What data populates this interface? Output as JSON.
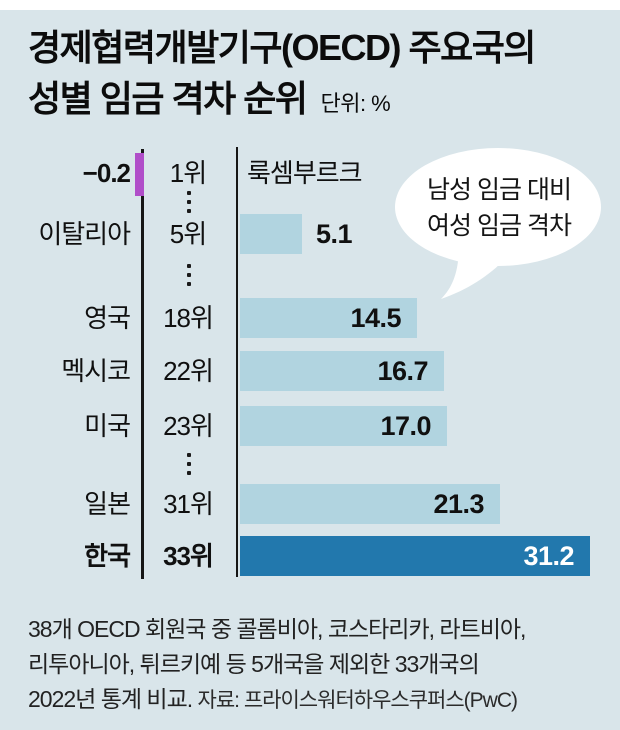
{
  "title": {
    "line1": "경제협력개발기구(OECD) 주요국의",
    "line2": "성별 임금 격차 순위",
    "unit": "단위: %"
  },
  "callout": {
    "line1": "남성 임금 대비",
    "line2": "여성 임금 격차"
  },
  "chart_data": {
    "type": "bar",
    "orientation": "horizontal",
    "title": "경제협력개발기구(OECD) 주요국의 성별 임금 격차 순위",
    "unit": "%",
    "value_axis_range": [
      0,
      31.2
    ],
    "grid": false,
    "categories": [
      "룩셈부르크",
      "이탈리아",
      "영국",
      "멕시코",
      "미국",
      "일본",
      "한국"
    ],
    "values": [
      -0.2,
      5.1,
      14.5,
      16.7,
      17.0,
      21.3,
      31.2
    ],
    "rows": [
      {
        "country": "룩셈부르크",
        "rank": "1위",
        "value": -0.2,
        "value_label": "−0.2",
        "highlight": false,
        "name_right_of_axis": true
      },
      {
        "country": "이탈리아",
        "rank": "5위",
        "value": 5.1,
        "value_label": "5.1",
        "highlight": false
      },
      {
        "country": "영국",
        "rank": "18위",
        "value": 14.5,
        "value_label": "14.5",
        "highlight": false
      },
      {
        "country": "멕시코",
        "rank": "22위",
        "value": 16.7,
        "value_label": "16.7",
        "highlight": false
      },
      {
        "country": "미국",
        "rank": "23위",
        "value": 17.0,
        "value_label": "17.0",
        "highlight": false
      },
      {
        "country": "일본",
        "rank": "31위",
        "value": 21.3,
        "value_label": "21.3",
        "highlight": false
      },
      {
        "country": "한국",
        "rank": "33위",
        "value": 31.2,
        "value_label": "31.2",
        "highlight": true
      }
    ],
    "ellipsis_after_ranks": [
      "1위",
      "5위",
      "23위"
    ],
    "colors": {
      "background": "#d9e5ea",
      "bar": "#b1d4e0",
      "highlight_bar": "#2278ad",
      "negative_tick": "#b04ec9",
      "axis": "#161616"
    }
  },
  "footnote": {
    "line1": "38개 OECD 회원국 중 콜롬비아, 코스타리카, 라트비아,",
    "line2": "리투아니아, 튀르키예 등 5개국을 제외한 33개국의",
    "line3": "2022년 통계 비교.",
    "source": "자료: 프라이스워터하우스쿠퍼스(PwC)"
  }
}
